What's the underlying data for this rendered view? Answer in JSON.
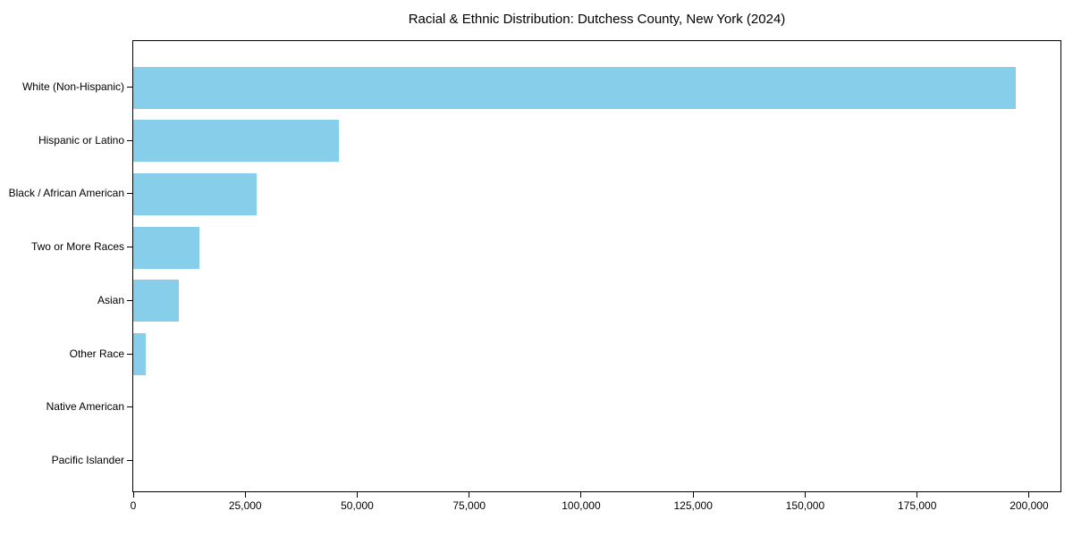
{
  "chart_data": {
    "type": "bar",
    "orientation": "horizontal",
    "title": "Racial & Ethnic Distribution: Dutchess County, New York (2024)",
    "categories": [
      "White (Non-Hispanic)",
      "Hispanic or Latino",
      "Black / African American",
      "Two or More Races",
      "Asian",
      "Other Race",
      "Native American",
      "Pacific Islander"
    ],
    "values": [
      197000,
      46000,
      27500,
      14800,
      10200,
      2700,
      0,
      0
    ],
    "xlabel": "",
    "ylabel": "",
    "xlim": [
      0,
      207000
    ],
    "x_ticks": [
      0,
      25000,
      50000,
      75000,
      100000,
      125000,
      150000,
      175000,
      200000
    ],
    "x_tick_labels": [
      "0",
      "25,000",
      "50,000",
      "75,000",
      "100,000",
      "125,000",
      "150,000",
      "175,000",
      "200,000"
    ],
    "grid": false,
    "legend": "none",
    "bar_color": "#87CEEB",
    "background_color": "#ffffff",
    "spine_color": "#000000",
    "text_color": "#000000"
  }
}
